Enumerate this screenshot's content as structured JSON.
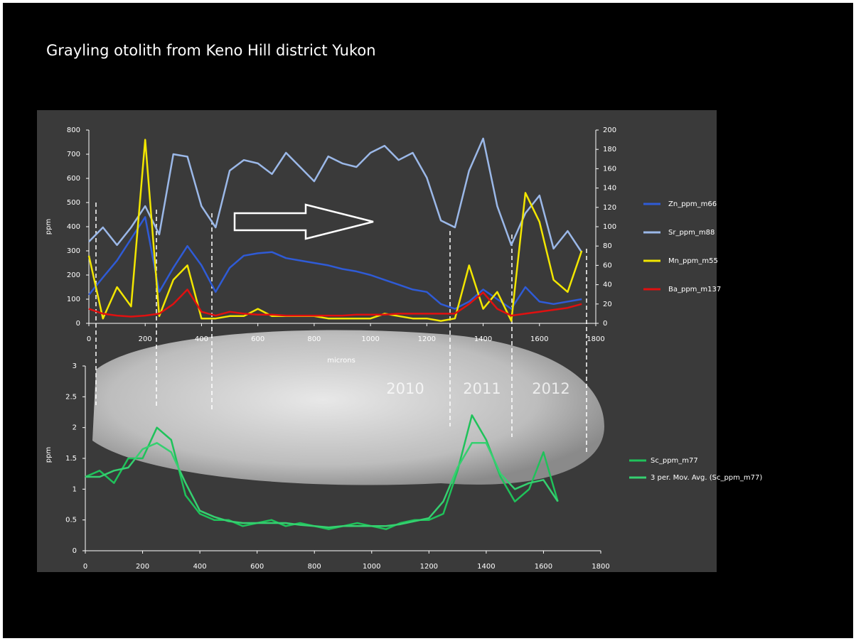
{
  "chart_data": [
    {
      "type": "line",
      "title": "Grayling otolith from Keno Hill district Yukon",
      "xlabel": "microns",
      "ylabel": "ppm",
      "x": [
        0,
        50,
        100,
        150,
        200,
        250,
        300,
        350,
        400,
        450,
        500,
        550,
        600,
        650,
        700,
        750,
        800,
        850,
        900,
        950,
        1000,
        1050,
        1100,
        1150,
        1200,
        1250,
        1300,
        1350,
        1400,
        1450,
        1500,
        1550,
        1600,
        1650,
        1700,
        1750
      ],
      "series": [
        {
          "name": "Zn_ppm_m66",
          "color": "#2f5bd6",
          "values": [
            118,
            190,
            260,
            350,
            440,
            130,
            230,
            320,
            240,
            130,
            230,
            280,
            290,
            295,
            270,
            260,
            250,
            240,
            225,
            215,
            200,
            180,
            160,
            140,
            130,
            80,
            60,
            90,
            140,
            100,
            60,
            150,
            90,
            80,
            90,
            100
          ]
        },
        {
          "name": "Sr_ppm_m88",
          "color": "#9bb8e8",
          "values": [
            338,
            397,
            324,
            397,
            485,
            368,
            700,
            690,
            485,
            397,
            632,
            676,
            662,
            618,
            706,
            647,
            588,
            691,
            662,
            647,
            706,
            735,
            676,
            706,
            603,
            426,
            397,
            632,
            765,
            485,
            324,
            456,
            529,
            309,
            382,
            294
          ]
        },
        {
          "name": "Mn_ppm_m55",
          "color": "#f2e600",
          "values": [
            280,
            20,
            150,
            70,
            760,
            30,
            180,
            240,
            20,
            20,
            30,
            30,
            60,
            30,
            30,
            30,
            30,
            20,
            20,
            20,
            20,
            40,
            30,
            20,
            20,
            10,
            20,
            240,
            60,
            130,
            10,
            540,
            420,
            180,
            130,
            300
          ]
        },
        {
          "name": "Ba_ppm_m137",
          "color": "#e01010",
          "axis": "y2",
          "values": [
            15,
            10,
            8,
            7,
            8,
            10,
            20,
            35,
            12,
            8,
            12,
            10,
            9,
            9,
            8,
            8,
            8,
            8,
            8,
            9,
            9,
            9,
            10,
            10,
            10,
            10,
            10,
            20,
            32,
            15,
            8,
            10,
            12,
            14,
            16,
            20
          ]
        }
      ],
      "xlim": [
        0,
        1800
      ],
      "xticks": [
        0,
        200,
        400,
        600,
        800,
        1000,
        1200,
        1400,
        1600,
        1800
      ],
      "ylim": [
        0,
        800
      ],
      "yticks": [
        0,
        100,
        200,
        300,
        400,
        500,
        600,
        700,
        800
      ],
      "y2lim": [
        0,
        200
      ],
      "y2ticks": [
        0,
        20,
        40,
        60,
        80,
        100,
        120,
        140,
        160,
        180,
        200
      ],
      "annotations": [
        "2010",
        "2011",
        "2012"
      ]
    },
    {
      "type": "line",
      "ylabel": "ppm",
      "x": [
        0,
        50,
        100,
        150,
        200,
        250,
        300,
        350,
        400,
        450,
        500,
        550,
        600,
        650,
        700,
        750,
        800,
        850,
        900,
        950,
        1000,
        1050,
        1100,
        1150,
        1200,
        1250,
        1300,
        1350,
        1400,
        1450,
        1500,
        1550,
        1600,
        1650
      ],
      "series": [
        {
          "name": "Sc_ppm_m77",
          "color": "#1fc25a",
          "values": [
            1.2,
            1.3,
            1.1,
            1.5,
            1.5,
            2.0,
            1.8,
            0.9,
            0.6,
            0.5,
            0.5,
            0.4,
            0.45,
            0.5,
            0.4,
            0.45,
            0.4,
            0.35,
            0.4,
            0.45,
            0.4,
            0.35,
            0.45,
            0.5,
            0.5,
            0.6,
            1.3,
            2.2,
            1.8,
            1.2,
            0.8,
            1.0,
            1.6,
            0.8
          ]
        },
        {
          "name": "3 per. Mov. Avg. (Sc_ppm_m77)",
          "color": "#35d070",
          "values": [
            1.2,
            1.2,
            1.3,
            1.35,
            1.65,
            1.75,
            1.6,
            1.1,
            0.65,
            0.55,
            0.48,
            0.45,
            0.45,
            0.45,
            0.45,
            0.42,
            0.4,
            0.38,
            0.4,
            0.4,
            0.4,
            0.4,
            0.43,
            0.48,
            0.53,
            0.8,
            1.35,
            1.75,
            1.75,
            1.25,
            1.0,
            1.1,
            1.15,
            0.8
          ]
        }
      ],
      "xlim": [
        0,
        1800
      ],
      "xticks": [
        0,
        200,
        400,
        600,
        800,
        1000,
        1200,
        1400,
        1600,
        1800
      ],
      "ylim": [
        0,
        3
      ],
      "yticks": [
        0,
        0.5,
        1,
        1.5,
        2,
        2.5,
        3
      ]
    }
  ]
}
